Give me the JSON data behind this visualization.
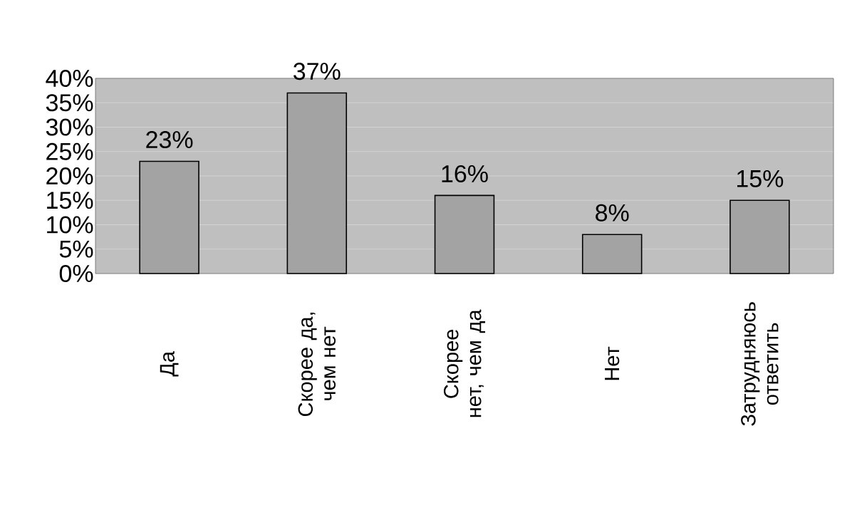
{
  "chart_data": {
    "type": "bar",
    "categories": [
      "Да",
      "Скорее да, чем нет",
      "Скорее нет, чем да",
      "Нет",
      "Затрудняюсь ответить"
    ],
    "values": [
      23,
      37,
      16,
      8,
      15
    ],
    "value_labels": [
      "23%",
      "37%",
      "16%",
      "8%",
      "15%"
    ],
    "color": "#a3a3a3",
    "ylim": [
      0,
      40
    ],
    "yticks": [
      {
        "value": 0,
        "label": "0%"
      },
      {
        "value": 5,
        "label": "5%"
      },
      {
        "value": 10,
        "label": "10%"
      },
      {
        "value": 15,
        "label": "15%"
      },
      {
        "value": 20,
        "label": "20%"
      },
      {
        "value": 25,
        "label": "25%"
      },
      {
        "value": 30,
        "label": "30%"
      },
      {
        "value": 35,
        "label": "35%"
      },
      {
        "value": 40,
        "label": "40%"
      }
    ],
    "grid": "y"
  }
}
